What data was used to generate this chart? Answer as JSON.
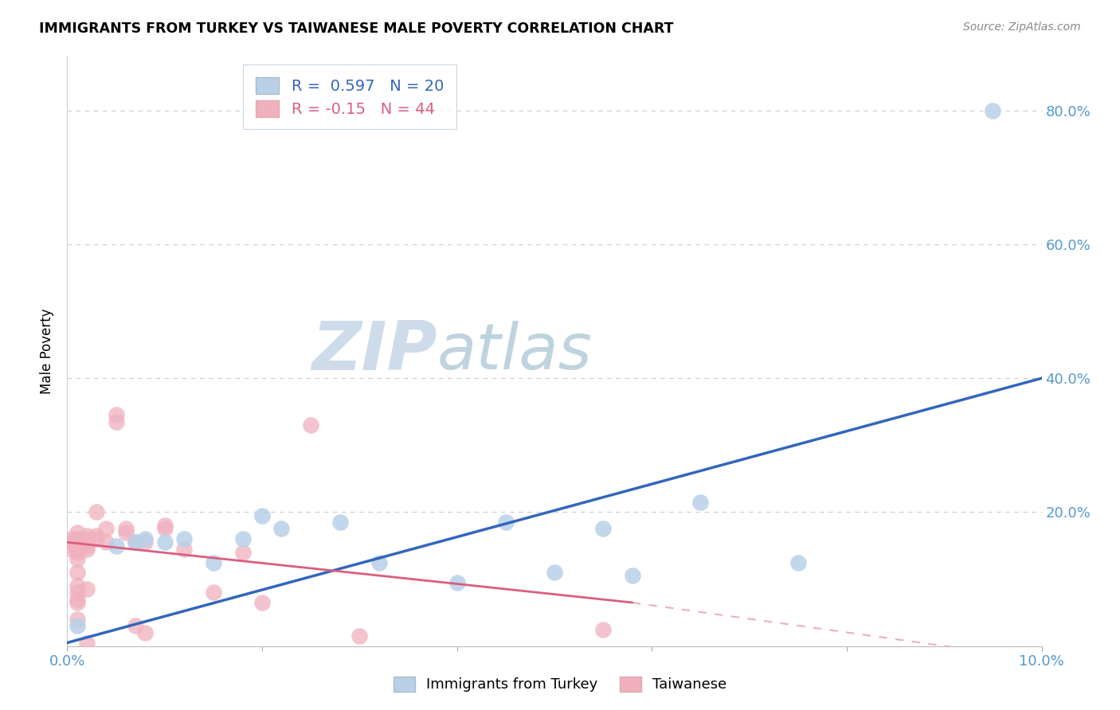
{
  "title": "IMMIGRANTS FROM TURKEY VS TAIWANESE MALE POVERTY CORRELATION CHART",
  "source": "Source: ZipAtlas.com",
  "ylabel": "Male Poverty",
  "xlabel_blue": "Immigrants from Turkey",
  "xlabel_pink": "Taiwanese",
  "xlim": [
    0,
    0.1
  ],
  "ylim": [
    0,
    0.88
  ],
  "blue_R": 0.597,
  "blue_N": 20,
  "pink_R": -0.15,
  "pink_N": 44,
  "blue_color": "#b8d0e8",
  "pink_color": "#f0b0be",
  "blue_line_color": "#3366bb",
  "pink_line_solid_color": "#d95f7f",
  "pink_line_dash_color": "#e8a0aa",
  "watermark_zip": "ZIP",
  "watermark_atlas": "atlas",
  "blue_points_x": [
    0.001,
    0.005,
    0.007,
    0.008,
    0.01,
    0.012,
    0.015,
    0.018,
    0.02,
    0.022,
    0.028,
    0.032,
    0.04,
    0.045,
    0.05,
    0.055,
    0.058,
    0.065,
    0.075,
    0.095
  ],
  "blue_points_y": [
    0.03,
    0.15,
    0.155,
    0.16,
    0.155,
    0.16,
    0.125,
    0.16,
    0.195,
    0.175,
    0.185,
    0.125,
    0.095,
    0.185,
    0.11,
    0.175,
    0.105,
    0.215,
    0.125,
    0.8
  ],
  "pink_points_x": [
    0.0005,
    0.0005,
    0.0005,
    0.001,
    0.001,
    0.001,
    0.001,
    0.001,
    0.001,
    0.001,
    0.001,
    0.001,
    0.001,
    0.001,
    0.001,
    0.002,
    0.002,
    0.002,
    0.002,
    0.002,
    0.002,
    0.002,
    0.003,
    0.003,
    0.003,
    0.004,
    0.004,
    0.005,
    0.005,
    0.006,
    0.006,
    0.007,
    0.007,
    0.008,
    0.008,
    0.01,
    0.01,
    0.012,
    0.015,
    0.018,
    0.02,
    0.025,
    0.03,
    0.055
  ],
  "pink_points_y": [
    0.155,
    0.16,
    0.145,
    0.15,
    0.17,
    0.16,
    0.14,
    0.13,
    0.145,
    0.11,
    0.09,
    0.08,
    0.065,
    0.07,
    0.04,
    0.16,
    0.145,
    0.15,
    0.155,
    0.165,
    0.085,
    0.005,
    0.2,
    0.165,
    0.16,
    0.155,
    0.175,
    0.335,
    0.345,
    0.17,
    0.175,
    0.155,
    0.03,
    0.155,
    0.02,
    0.175,
    0.18,
    0.145,
    0.08,
    0.14,
    0.065,
    0.33,
    0.015,
    0.025
  ],
  "blue_line": [
    [
      0.0,
      0.005
    ],
    [
      0.1,
      0.4
    ]
  ],
  "pink_line_solid": [
    [
      0.0,
      0.155
    ],
    [
      0.058,
      0.065
    ]
  ],
  "pink_line_dash": [
    [
      0.058,
      0.065
    ],
    [
      0.1,
      -0.02
    ]
  ]
}
